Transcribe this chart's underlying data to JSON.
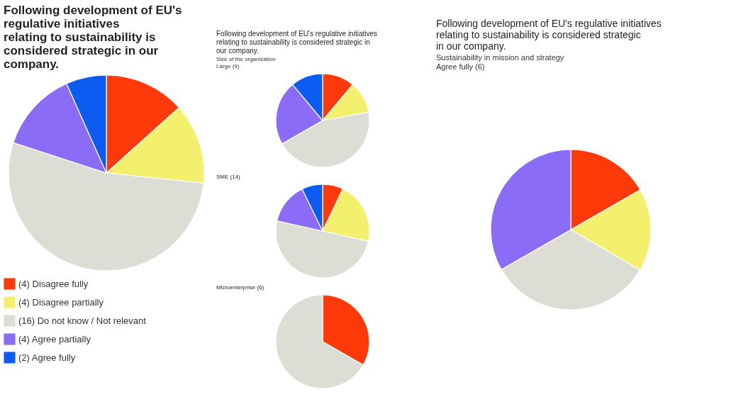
{
  "chart_data": [
    {
      "type": "pie",
      "title": "Following development of EU's regulative initiatives relating to sustainability is considered strategic in our company.",
      "categories": [
        "(4) Disagree fully",
        "(4) Disagree partially",
        "(16) Do not know / Not relevant",
        "(4) Agree partially",
        "(2) Agree fully"
      ],
      "values": [
        4,
        4,
        16,
        4,
        2
      ],
      "colors": [
        "#fe3a0b",
        "#f3f06e",
        "#dcded6",
        "#8b6cf6",
        "#0c5cf2"
      ],
      "legend": "bottom"
    },
    {
      "type": "pie",
      "title": "Following development of EU's regulative initiatives relating to sustainability is considered strategic in our company.",
      "subtitle": "Size of the organization",
      "annotations": [
        "Large (9)"
      ],
      "categories": [
        null,
        null,
        null,
        null,
        null
      ],
      "values": [
        11.1,
        11.1,
        44.5,
        22.2,
        11.1
      ],
      "colors": [
        "#fe3a0b",
        "#f3f06e",
        "#dcded6",
        "#8b6cf6",
        "#0c5cf2"
      ]
    },
    {
      "type": "pie",
      "title": "SME (14)",
      "categories": [
        null,
        null,
        null,
        null,
        null
      ],
      "values": [
        7.1,
        21.4,
        50,
        14.3,
        7.2
      ],
      "colors": [
        "#fe3a0b",
        "#f3f06e",
        "#dcded6",
        "#8b6cf6",
        "#0c5cf2"
      ]
    },
    {
      "type": "pie",
      "title": "Microenterprise (6)",
      "categories": [
        null,
        null
      ],
      "values": [
        33.3,
        66.7
      ],
      "colors": [
        "#fe3a0b",
        "#dcded6"
      ]
    },
    {
      "type": "pie",
      "title": "Following development of EU's regulative initiatives relating to sustainability is considered strategic in our company.",
      "subtitle": "Sustainability in mission and strategy",
      "annotations": [
        "Agree fully (6)"
      ],
      "categories": [
        null,
        null,
        null,
        null
      ],
      "values": [
        16.7,
        16.7,
        33.3,
        33.3
      ],
      "colors": [
        "#fe3a0b",
        "#f3f06e",
        "#dcded6",
        "#8b6cf6"
      ]
    }
  ]
}
